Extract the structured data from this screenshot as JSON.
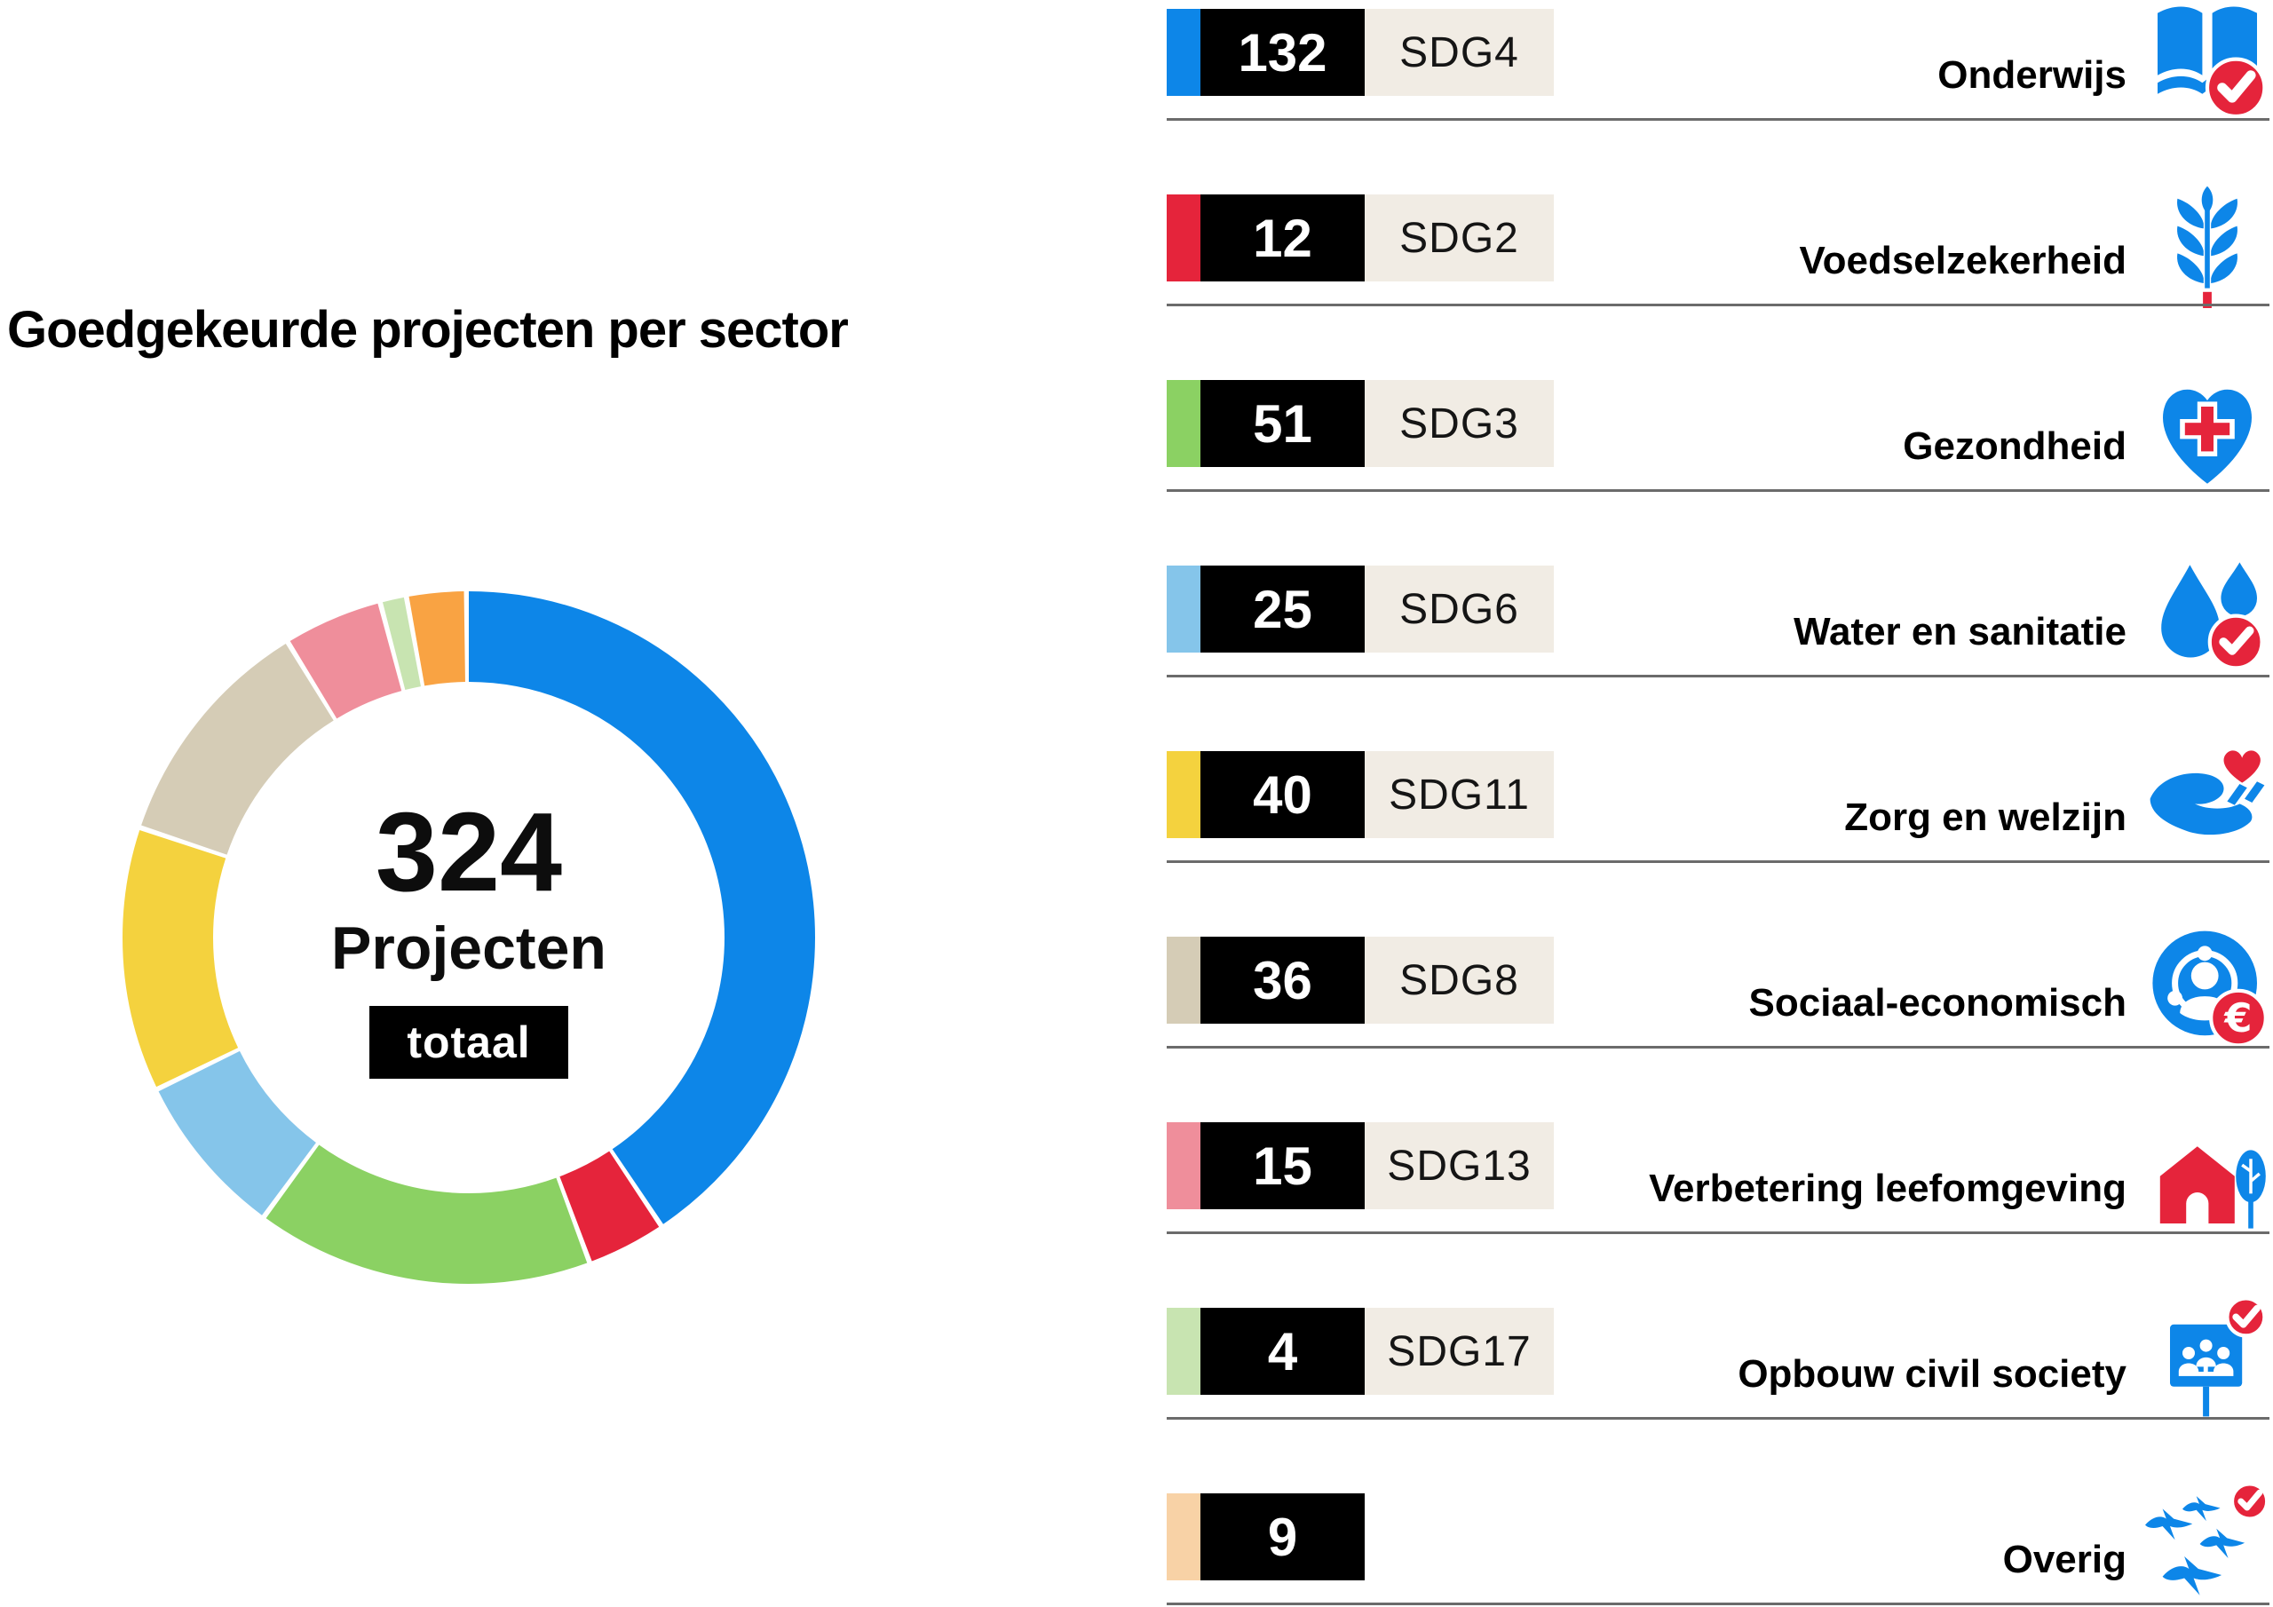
{
  "title": "Goedgekeurde projecten per sector",
  "donut_center": {
    "total": "324",
    "label": "Projecten",
    "badge": "totaal"
  },
  "chart_data": {
    "type": "pie",
    "subtype": "donut",
    "title": "Goedgekeurde projecten per sector",
    "total": 324,
    "center_text": [
      "324",
      "Projecten",
      "totaal"
    ],
    "direction": "clockwise",
    "start_angle_deg": 0,
    "legend_position": "right-list",
    "accent_blue": "#0d86e8",
    "accent_red": "#e5243b",
    "categories": [
      "Onderwijs",
      "Voedselzekerheid",
      "Gezondheid",
      "Water en sanitatie",
      "Zorg en welzijn",
      "Sociaal-economisch",
      "Verbetering leefomgeving",
      "Opbouw civil society",
      "Overig"
    ],
    "values": [
      132,
      12,
      51,
      25,
      40,
      36,
      15,
      4,
      9
    ],
    "colors": [
      "#0d86e8",
      "#e5243b",
      "#8bd163",
      "#85c5ea",
      "#f4d23e",
      "#d5ccb6",
      "#ef8e9b",
      "#c8e4b1",
      "#f9a343"
    ],
    "segments": [
      {
        "label": "Onderwijs",
        "sdg_tag": "SDG4",
        "value": 132,
        "color": "#0d86e8",
        "strip_color": "#0d86e8",
        "icon": "open-book-check-icon"
      },
      {
        "label": "Voedselzekerheid",
        "sdg_tag": "SDG2",
        "value": 12,
        "color": "#e5243b",
        "strip_color": "#e5243b",
        "icon": "wheat-icon"
      },
      {
        "label": "Gezondheid",
        "sdg_tag": "SDG3",
        "value": 51,
        "color": "#8bd163",
        "strip_color": "#8bd163",
        "icon": "heart-cross-icon"
      },
      {
        "label": "Water en sanitatie",
        "sdg_tag": "SDG6",
        "value": 25,
        "color": "#85c5ea",
        "strip_color": "#85c5ea",
        "icon": "water-drops-check-icon"
      },
      {
        "label": "Zorg en welzijn",
        "sdg_tag": "SDG11",
        "value": 40,
        "color": "#f4d23e",
        "strip_color": "#f4d23e",
        "icon": "hand-heart-icon"
      },
      {
        "label": "Sociaal-economisch",
        "sdg_tag": "SDG8",
        "value": 36,
        "color": "#d5ccb6",
        "strip_color": "#d5ccb6",
        "icon": "community-euro-icon"
      },
      {
        "label": "Verbetering leefomgeving",
        "sdg_tag": "SDG13",
        "value": 15,
        "color": "#ef8e9b",
        "strip_color": "#ef8e9b",
        "icon": "house-tree-icon"
      },
      {
        "label": "Opbouw civil society",
        "sdg_tag": "SDG17",
        "value": 4,
        "color": "#c8e4b1",
        "strip_color": "#c8e4b1",
        "icon": "presentation-people-check-icon"
      },
      {
        "label": "Overig",
        "sdg_tag": "",
        "value": 9,
        "color": "#f9a343",
        "strip_color": "#f8d2a6",
        "icon": "birds-check-icon"
      }
    ]
  }
}
